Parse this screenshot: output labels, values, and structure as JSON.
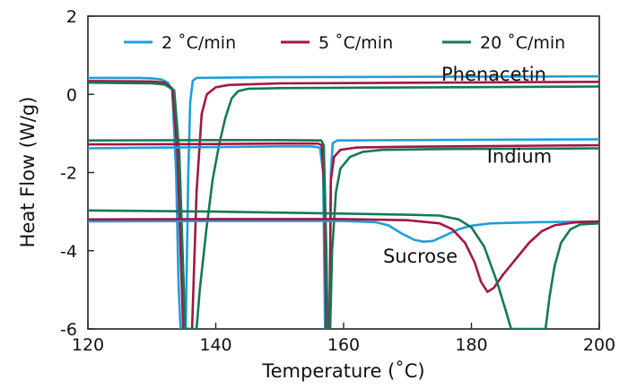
{
  "chart_data": {
    "type": "line",
    "xlabel": "Temperature (˚C)",
    "ylabel": "Heat Flow (W/g)",
    "xlim": [
      120,
      200
    ],
    "ylim": [
      -6,
      2
    ],
    "xticks": [
      120,
      140,
      160,
      180,
      200
    ],
    "yticks": [
      -6,
      -4,
      -2,
      0,
      2
    ],
    "grid": false,
    "legend_position": "top",
    "legend": [
      {
        "label": "2 ˚C/min",
        "color": "#1f9fd9"
      },
      {
        "label": "5 ˚C/min",
        "color": "#a3173f"
      },
      {
        "label": "20 ˚C/min",
        "color": "#137a55"
      }
    ],
    "annotations": [
      {
        "text": "Phenacetin",
        "x": 183.5,
        "y": 0.35
      },
      {
        "text": "Indium",
        "x": 187.5,
        "y": -1.75
      },
      {
        "text": "Sucrose",
        "x": 172,
        "y": -4.3
      }
    ],
    "series": [
      {
        "name": "2 ˚C/min",
        "sample": "Phenacetin",
        "color": "#1f9fd9",
        "points": [
          [
            120,
            0.42
          ],
          [
            128,
            0.42
          ],
          [
            130,
            0.41
          ],
          [
            131.5,
            0.38
          ],
          [
            132.5,
            0.3
          ],
          [
            133.2,
            0.1
          ],
          [
            133.8,
            -2
          ],
          [
            134.2,
            -5
          ],
          [
            134.5,
            -6
          ],
          [
            135.3,
            -6
          ],
          [
            135.7,
            -2
          ],
          [
            136,
            -0.2
          ],
          [
            136.4,
            0.35
          ],
          [
            137,
            0.42
          ],
          [
            150,
            0.44
          ],
          [
            200,
            0.46
          ]
        ]
      },
      {
        "name": "5 ˚C/min",
        "sample": "Phenacetin",
        "color": "#a3173f",
        "points": [
          [
            120,
            0.34
          ],
          [
            130,
            0.33
          ],
          [
            132,
            0.3
          ],
          [
            133.2,
            0.15
          ],
          [
            134,
            -1.5
          ],
          [
            134.5,
            -4
          ],
          [
            134.9,
            -6
          ],
          [
            136.3,
            -6
          ],
          [
            137,
            -2.5
          ],
          [
            137.8,
            -0.5
          ],
          [
            138.6,
            0
          ],
          [
            140,
            0.18
          ],
          [
            142,
            0.24
          ],
          [
            150,
            0.28
          ],
          [
            200,
            0.32
          ]
        ]
      },
      {
        "name": "20 ˚C/min",
        "sample": "Phenacetin",
        "color": "#137a55",
        "points": [
          [
            120,
            0.3
          ],
          [
            130,
            0.28
          ],
          [
            132,
            0.25
          ],
          [
            133.5,
            0.1
          ],
          [
            134.3,
            -1.5
          ],
          [
            134.8,
            -4
          ],
          [
            135.2,
            -6
          ],
          [
            137,
            -6
          ],
          [
            137.5,
            -5
          ],
          [
            138.5,
            -3.5
          ],
          [
            139.5,
            -2.2
          ],
          [
            140.5,
            -1.3
          ],
          [
            141.5,
            -0.6
          ],
          [
            142.5,
            -0.1
          ],
          [
            143.5,
            0.08
          ],
          [
            145,
            0.14
          ],
          [
            150,
            0.16
          ],
          [
            200,
            0.2
          ]
        ]
      },
      {
        "name": "2 ˚C/min",
        "sample": "Indium",
        "color": "#1f9fd9",
        "points": [
          [
            120,
            -1.38
          ],
          [
            140,
            -1.35
          ],
          [
            150,
            -1.33
          ],
          [
            155,
            -1.33
          ],
          [
            156.3,
            -1.36
          ],
          [
            156.8,
            -2
          ],
          [
            157.1,
            -6
          ],
          [
            157.8,
            -6
          ],
          [
            158,
            -2
          ],
          [
            158.3,
            -1.25
          ],
          [
            159,
            -1.18
          ],
          [
            170,
            -1.17
          ],
          [
            200,
            -1.15
          ]
        ]
      },
      {
        "name": "5 ˚C/min",
        "sample": "Indium",
        "color": "#a3173f",
        "points": [
          [
            120,
            -1.28
          ],
          [
            140,
            -1.27
          ],
          [
            150,
            -1.26
          ],
          [
            156,
            -1.26
          ],
          [
            156.6,
            -1.3
          ],
          [
            157,
            -2.5
          ],
          [
            157.3,
            -6
          ],
          [
            157.8,
            -6
          ],
          [
            158,
            -2.2
          ],
          [
            158.5,
            -1.6
          ],
          [
            159.5,
            -1.42
          ],
          [
            162,
            -1.36
          ],
          [
            170,
            -1.34
          ],
          [
            200,
            -1.3
          ]
        ]
      },
      {
        "name": "20 ˚C/min",
        "sample": "Indium",
        "color": "#137a55",
        "points": [
          [
            120,
            -1.18
          ],
          [
            140,
            -1.17
          ],
          [
            150,
            -1.17
          ],
          [
            156.5,
            -1.18
          ],
          [
            156.9,
            -1.3
          ],
          [
            157.3,
            -4
          ],
          [
            157.5,
            -6
          ],
          [
            157.9,
            -6
          ],
          [
            158.2,
            -4
          ],
          [
            158.8,
            -2.5
          ],
          [
            159.5,
            -1.9
          ],
          [
            161,
            -1.6
          ],
          [
            163,
            -1.47
          ],
          [
            166,
            -1.42
          ],
          [
            175,
            -1.4
          ],
          [
            200,
            -1.38
          ]
        ]
      },
      {
        "name": "2 ˚C/min",
        "sample": "Sucrose",
        "color": "#1f9fd9",
        "points": [
          [
            120,
            -3.25
          ],
          [
            140,
            -3.24
          ],
          [
            160,
            -3.24
          ],
          [
            165,
            -3.27
          ],
          [
            167,
            -3.35
          ],
          [
            169,
            -3.55
          ],
          [
            171,
            -3.72
          ],
          [
            172.5,
            -3.77
          ],
          [
            174,
            -3.75
          ],
          [
            176,
            -3.6
          ],
          [
            178,
            -3.45
          ],
          [
            180,
            -3.36
          ],
          [
            183,
            -3.3
          ],
          [
            190,
            -3.27
          ],
          [
            200,
            -3.25
          ]
        ]
      },
      {
        "name": "5 ˚C/min",
        "sample": "Sucrose",
        "color": "#a3173f",
        "points": [
          [
            120,
            -3.2
          ],
          [
            140,
            -3.19
          ],
          [
            160,
            -3.19
          ],
          [
            170,
            -3.22
          ],
          [
            175,
            -3.3
          ],
          [
            177,
            -3.45
          ],
          [
            179,
            -3.8
          ],
          [
            180.5,
            -4.3
          ],
          [
            181.5,
            -4.8
          ],
          [
            182.5,
            -5.05
          ],
          [
            183.5,
            -4.95
          ],
          [
            185,
            -4.6
          ],
          [
            187,
            -4.2
          ],
          [
            189,
            -3.8
          ],
          [
            191,
            -3.5
          ],
          [
            193,
            -3.35
          ],
          [
            196,
            -3.28
          ],
          [
            200,
            -3.25
          ]
        ]
      },
      {
        "name": "20 ˚C/min",
        "sample": "Sucrose",
        "color": "#137a55",
        "points": [
          [
            120,
            -2.97
          ],
          [
            140,
            -3.0
          ],
          [
            160,
            -3.05
          ],
          [
            170,
            -3.08
          ],
          [
            175,
            -3.1
          ],
          [
            178,
            -3.2
          ],
          [
            180,
            -3.4
          ],
          [
            182,
            -3.9
          ],
          [
            184,
            -4.8
          ],
          [
            185.5,
            -5.6
          ],
          [
            186.2,
            -6
          ],
          [
            191.6,
            -6
          ],
          [
            192.2,
            -5.2
          ],
          [
            193,
            -4.4
          ],
          [
            194,
            -3.8
          ],
          [
            195.5,
            -3.45
          ],
          [
            197,
            -3.33
          ],
          [
            200,
            -3.3
          ]
        ]
      }
    ]
  }
}
